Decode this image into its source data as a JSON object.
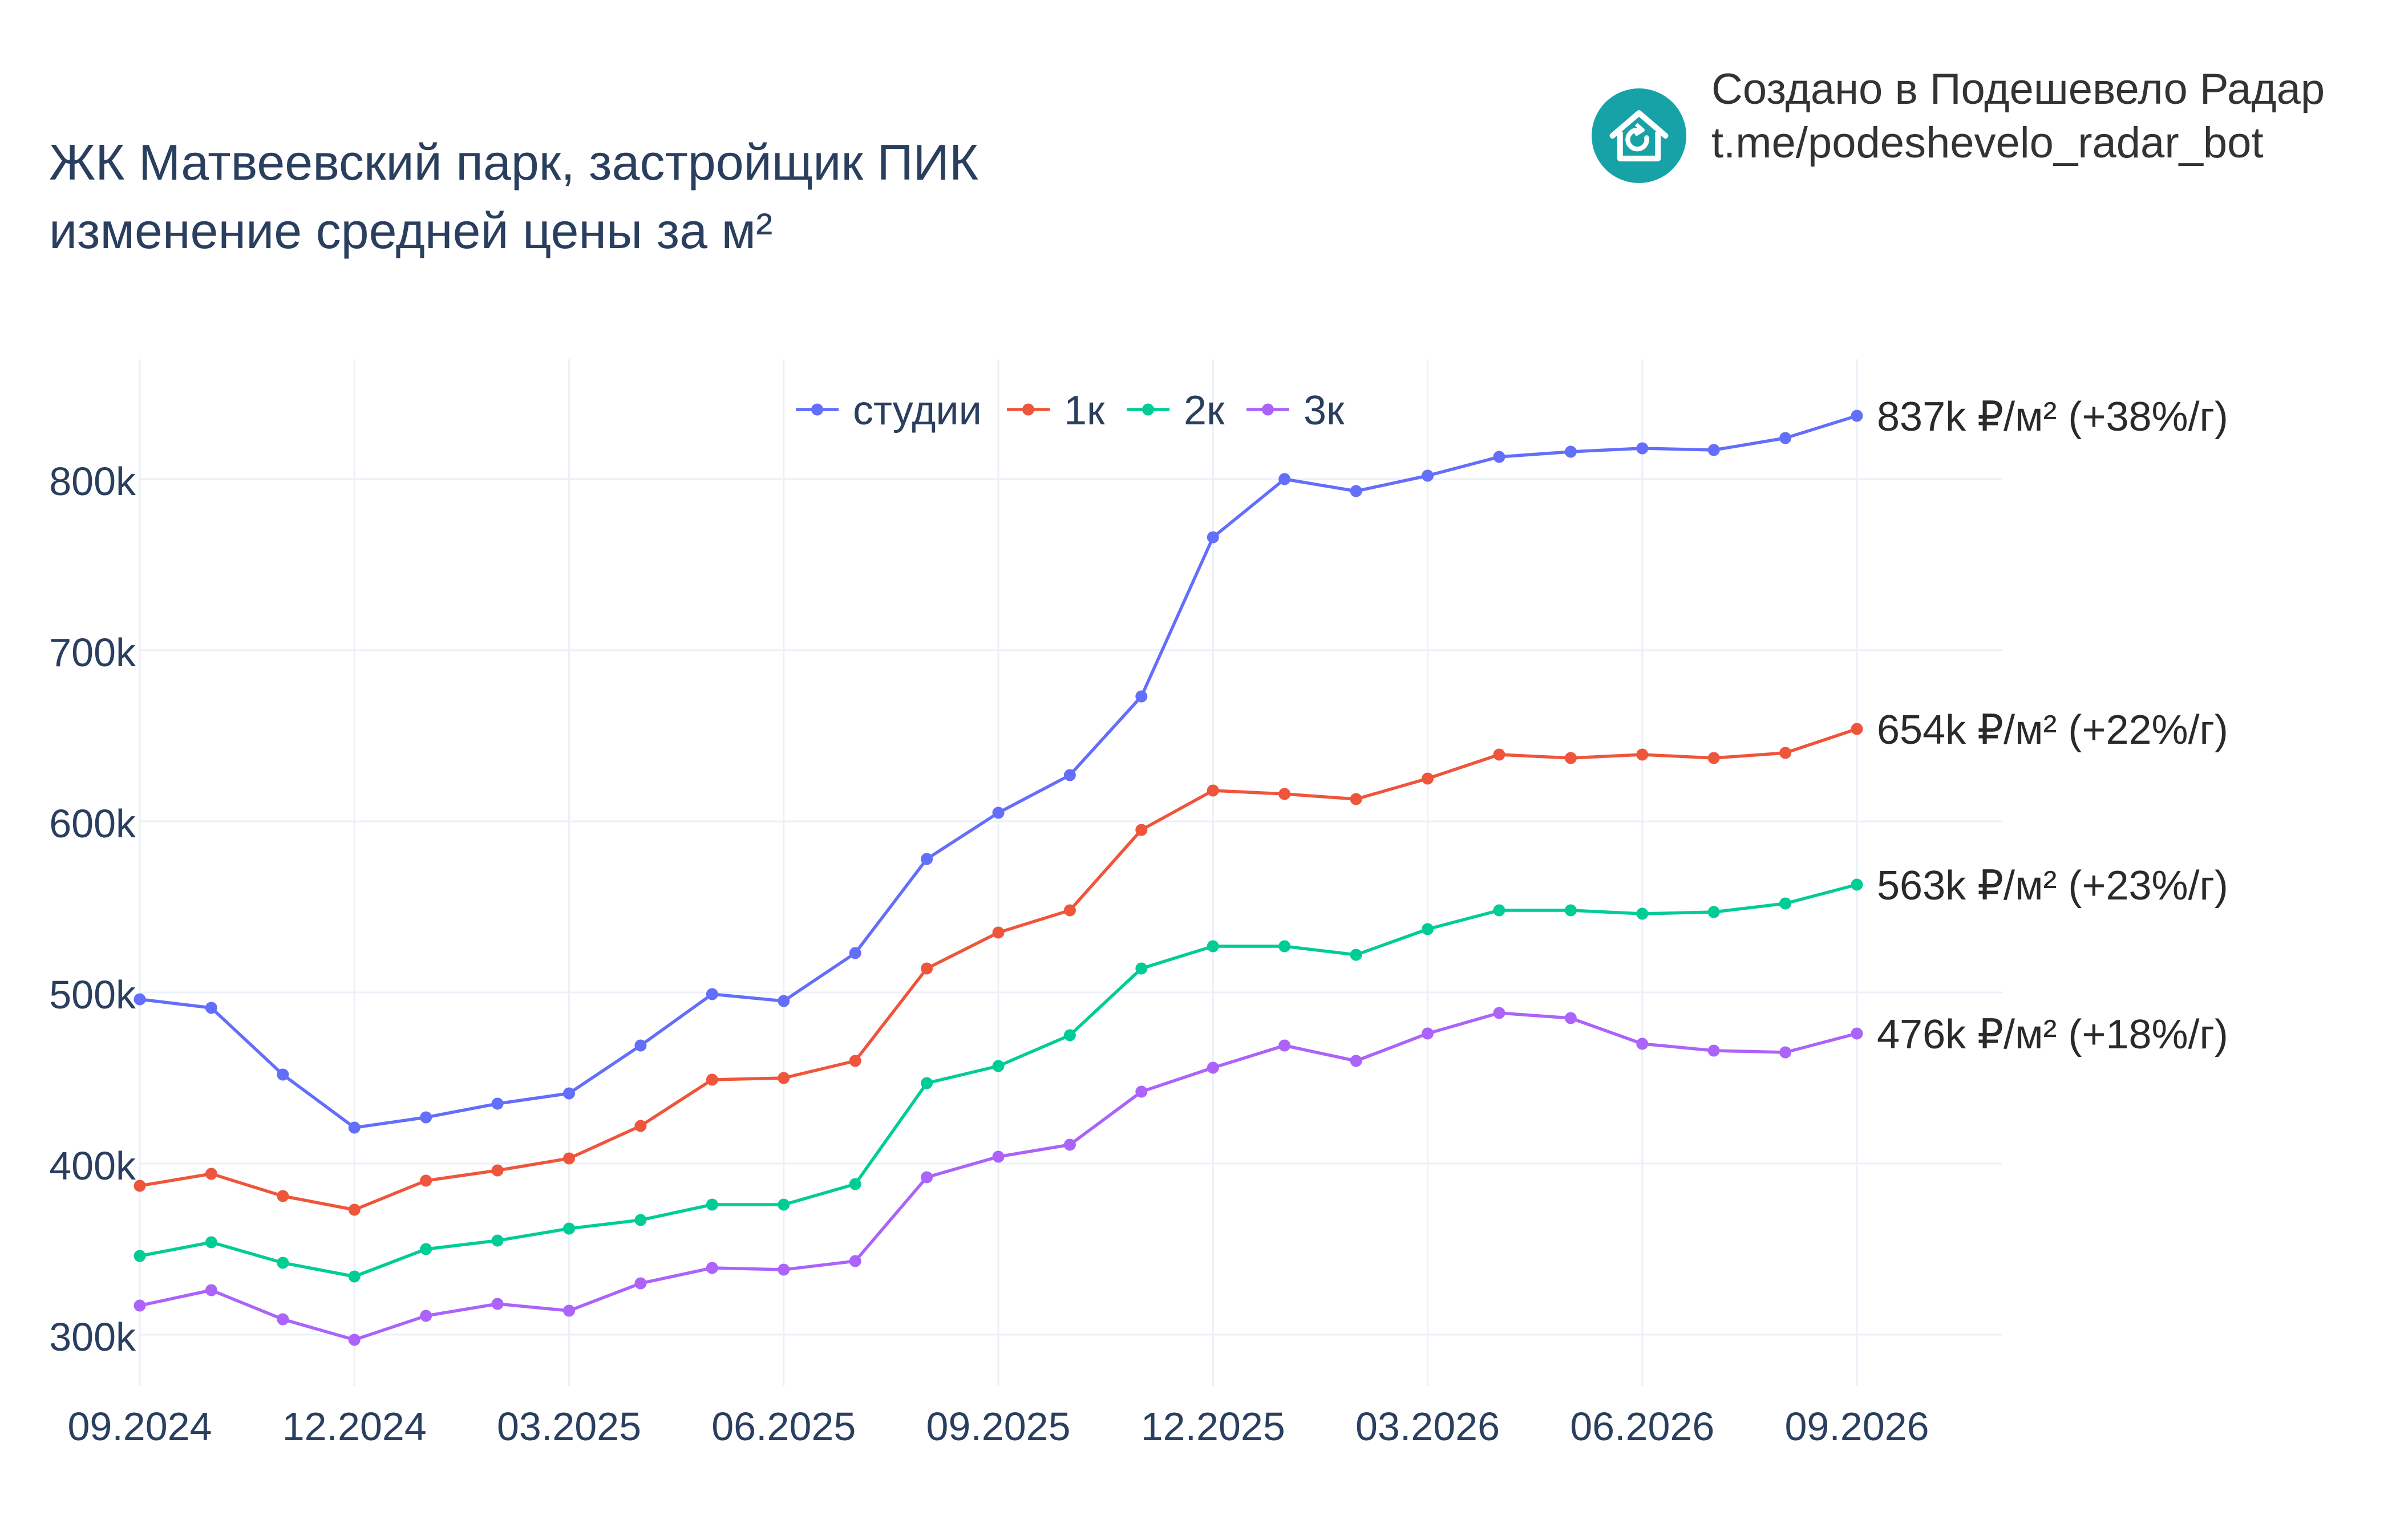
{
  "title": {
    "line1": "ЖК Матвеевский парк, застройщик ПИК",
    "line2": "изменение средней цены за м²"
  },
  "brand": {
    "line1": "Создано в Подешевело Радар",
    "line2": "t.me/podeshevelo_radar_bot",
    "logo_icon": "house-refresh-icon",
    "logo_color": "#17a2a8"
  },
  "chart_data": {
    "type": "line",
    "x": [
      "2024-09",
      "2024-10",
      "2024-11",
      "2024-12",
      "2025-01",
      "2025-02",
      "2025-03",
      "2025-04",
      "2025-05",
      "2025-06",
      "2025-07",
      "2025-08",
      "2025-09",
      "2025-10",
      "2025-11",
      "2025-12",
      "2026-01",
      "2026-02",
      "2026-03",
      "2026-04",
      "2026-05",
      "2026-06",
      "2026-07",
      "2026-08",
      "2026-09"
    ],
    "x_ticks": [
      "09.2024",
      "12.2024",
      "03.2025",
      "06.2025",
      "09.2025",
      "12.2025",
      "03.2026",
      "06.2026",
      "09.2026"
    ],
    "x_tick_values": [
      "2024-09",
      "2024-12",
      "2025-03",
      "2025-06",
      "2025-09",
      "2025-12",
      "2026-03",
      "2026-06",
      "2026-09"
    ],
    "y_ticks": [
      "300k",
      "400k",
      "500k",
      "600k",
      "700k",
      "800k"
    ],
    "y_tick_values": [
      300000,
      400000,
      500000,
      600000,
      700000,
      800000
    ],
    "ylim": [
      270000,
      870000
    ],
    "grid": true,
    "legend_position": "top-center",
    "series": [
      {
        "name": "студии",
        "color": "#636efa",
        "end_label": "837k ₽/м² (+38%/г)",
        "values": [
          496000,
          491000,
          452000,
          421000,
          427000,
          435000,
          441000,
          469000,
          499000,
          495000,
          523000,
          578000,
          605000,
          627000,
          673000,
          766000,
          800000,
          793000,
          802000,
          813000,
          816000,
          818000,
          817000,
          824000,
          837000
        ]
      },
      {
        "name": "1к",
        "color": "#ef553b",
        "end_label": "654k ₽/м² (+22%/г)",
        "values": [
          387000,
          394000,
          381000,
          373000,
          390000,
          396000,
          403000,
          422000,
          449000,
          450000,
          460000,
          514000,
          535000,
          548000,
          595000,
          618000,
          616000,
          613000,
          625000,
          639000,
          637000,
          639000,
          637000,
          640000,
          654000
        ]
      },
      {
        "name": "2к",
        "color": "#00cc96",
        "end_label": "563k ₽/м² (+23%/г)",
        "values": [
          346000,
          354000,
          342000,
          334000,
          350000,
          355000,
          362000,
          367000,
          376000,
          376000,
          388000,
          447000,
          457000,
          475000,
          514000,
          527000,
          527000,
          522000,
          537000,
          548000,
          548000,
          546000,
          547000,
          552000,
          563000
        ]
      },
      {
        "name": "3к",
        "color": "#ab63fa",
        "end_label": "476k ₽/м² (+18%/г)",
        "values": [
          317000,
          326000,
          309000,
          297000,
          311000,
          318000,
          314000,
          330000,
          339000,
          338000,
          343000,
          392000,
          404000,
          411000,
          442000,
          456000,
          469000,
          460000,
          476000,
          488000,
          485000,
          470000,
          466000,
          465000,
          476000
        ]
      }
    ]
  }
}
